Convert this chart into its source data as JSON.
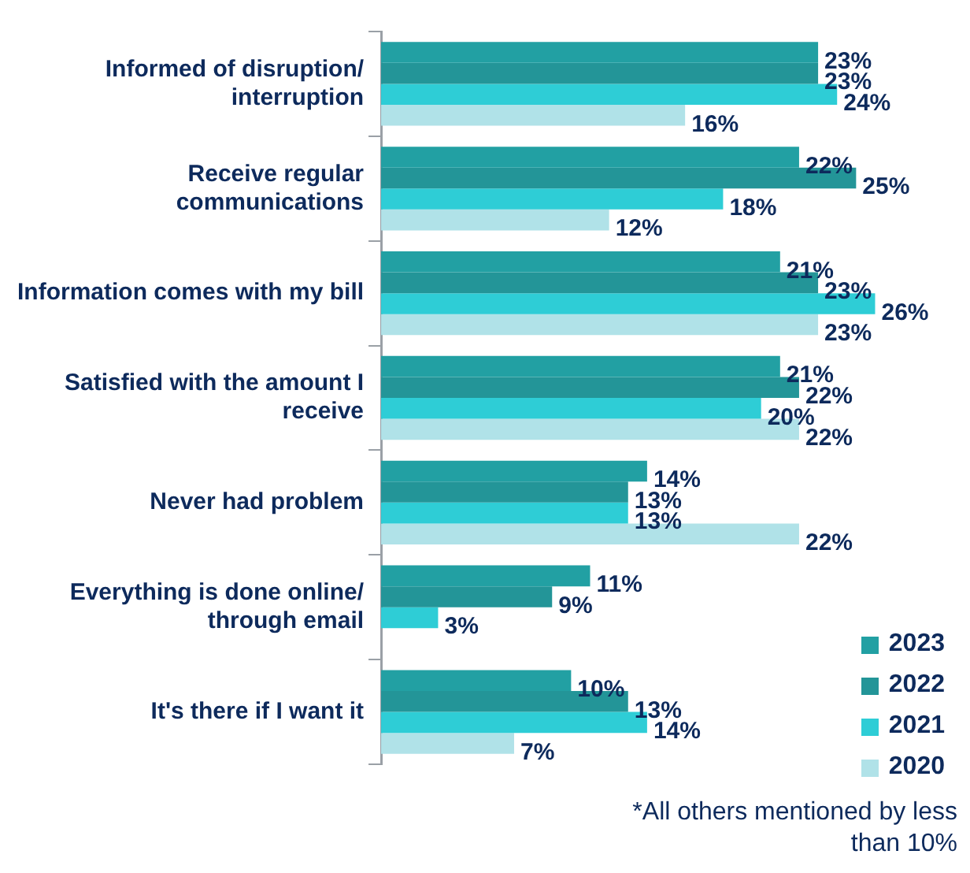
{
  "chart_data": {
    "type": "bar",
    "orientation": "horizontal",
    "categories": [
      "Informed of disruption/ interruption",
      "Receive regular communications",
      "Information comes with my bill",
      "Satisfied with the amount I receive",
      "Never had problem",
      "Everything is done online/ through email",
      "It's there if I want it"
    ],
    "series": [
      {
        "name": "2023",
        "color": "#22a0a3",
        "values": [
          23,
          22,
          21,
          21,
          14,
          11,
          10
        ],
        "value_labels": [
          "23%",
          "22%",
          "21%",
          "21%",
          "14%",
          "11%",
          "10%"
        ]
      },
      {
        "name": "2022",
        "color": "#239598",
        "values": [
          23,
          25,
          23,
          22,
          13,
          9,
          13
        ],
        "value_labels": [
          "23%",
          "25%",
          "23%",
          "22%",
          "13%",
          "9%",
          "13%"
        ]
      },
      {
        "name": "2021",
        "color": "#2ecdd6",
        "values": [
          24,
          18,
          26,
          20,
          13,
          3,
          14
        ],
        "value_labels": [
          "24%",
          "18%",
          "26%",
          "20%",
          "13%",
          "3%",
          "14%"
        ]
      },
      {
        "name": "2020",
        "color": "#b0e2e8",
        "values": [
          16,
          12,
          23,
          22,
          22,
          null,
          7
        ],
        "value_labels": [
          "16%",
          "12%",
          "23%",
          "22%",
          "22%",
          null,
          "7%"
        ]
      }
    ],
    "legend": "bottom right",
    "grid": false,
    "tick_labels": "y",
    "annotations": [
      "*All others mentioned by less than 10%"
    ]
  }
}
